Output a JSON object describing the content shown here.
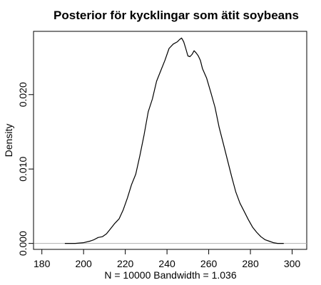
{
  "chart_data": {
    "type": "line",
    "title": "Posterior för kycklingar som ätit soybeans",
    "xlabel": "N = 10000   Bandwidth = 1.036",
    "ylabel": "Density",
    "xlim": [
      176,
      307
    ],
    "ylim": [
      -0.0008,
      0.0285
    ],
    "x_ticks": [
      180,
      200,
      220,
      240,
      260,
      280,
      300
    ],
    "y_ticks": [
      0.0,
      0.01,
      0.02
    ],
    "x_tick_labels": [
      "180",
      "200",
      "220",
      "240",
      "260",
      "280",
      "300"
    ],
    "y_tick_labels": [
      "0.000",
      "0.010",
      "0.020"
    ],
    "grid": false,
    "baseline": 0,
    "series": [
      {
        "x": [
          191,
          196,
          200,
          203,
          205,
          207,
          209,
          211,
          213,
          215,
          217,
          219,
          221,
          223,
          225,
          227,
          229,
          231,
          233,
          235,
          237,
          239,
          241,
          243,
          245,
          246,
          247,
          248,
          249,
          250,
          251,
          252,
          253,
          254,
          255,
          256,
          257,
          259,
          261,
          263,
          265,
          267,
          269,
          271,
          273,
          275,
          277,
          279,
          281,
          283,
          285,
          287,
          289,
          291,
          293,
          296
        ],
        "y": [
          0.0,
          0.0,
          0.0001,
          0.0003,
          0.0005,
          0.0008,
          0.0009,
          0.0013,
          0.002,
          0.0027,
          0.0033,
          0.0045,
          0.0061,
          0.0079,
          0.0093,
          0.0118,
          0.0146,
          0.0177,
          0.0194,
          0.0218,
          0.0232,
          0.0246,
          0.0262,
          0.0268,
          0.0271,
          0.0274,
          0.0276,
          0.0271,
          0.0262,
          0.0252,
          0.0251,
          0.0254,
          0.0259,
          0.0256,
          0.0252,
          0.0246,
          0.0235,
          0.0222,
          0.0203,
          0.0183,
          0.0156,
          0.0134,
          0.0112,
          0.009,
          0.0069,
          0.0054,
          0.0043,
          0.0032,
          0.0022,
          0.0015,
          0.0009,
          0.0005,
          0.0003,
          0.0001,
          0.0,
          0.0
        ]
      }
    ]
  }
}
